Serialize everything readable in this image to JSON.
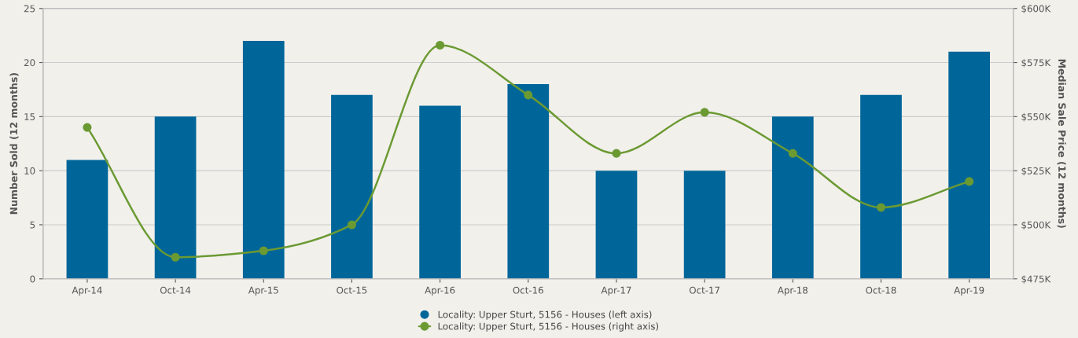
{
  "chart_data": {
    "type": "bar",
    "ylabel": "Number Sold (12 months)",
    "y2label": "Median Sale Price (12 months)",
    "categories": [
      "Apr-14",
      "Oct-14",
      "Apr-15",
      "Oct-15",
      "Apr-16",
      "Oct-16",
      "Apr-17",
      "Oct-17",
      "Apr-18",
      "Oct-18",
      "Apr-19"
    ],
    "series": [
      {
        "name": "Locality: Upper Sturt, 5156 - Houses (left axis)",
        "color": "#006699",
        "values": [
          11,
          15,
          22,
          17,
          16,
          18,
          10,
          10,
          15,
          17,
          21
        ]
      },
      {
        "name": "Locality: Upper Sturt, 5156 - Houses (right axis)",
        "type": "line",
        "axis": "y2",
        "color": "#6b9a33",
        "marker": "circle",
        "values": [
          545,
          485,
          488,
          500,
          583,
          560,
          533,
          552,
          533,
          508,
          520
        ]
      }
    ],
    "ylim": [
      0,
      25
    ],
    "yticks": [
      0,
      5,
      10,
      15,
      20,
      25
    ],
    "y2lim": [
      475,
      600
    ],
    "y2ticks": [
      {
        "value": 475,
        "label": "$475K"
      },
      {
        "value": 500,
        "label": "$500K"
      },
      {
        "value": 525,
        "label": "$525K"
      },
      {
        "value": 550,
        "label": "$550K"
      },
      {
        "value": 575,
        "label": "$575K"
      },
      {
        "value": 600,
        "label": "$600K"
      }
    ],
    "grid": "y",
    "legend": "bottom"
  }
}
